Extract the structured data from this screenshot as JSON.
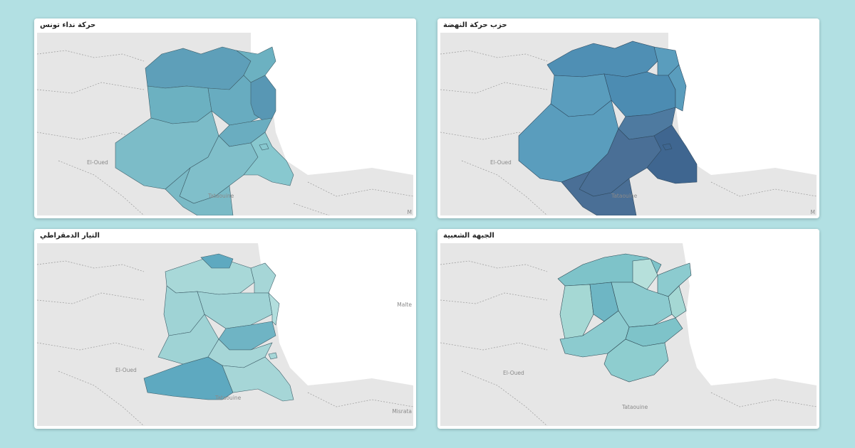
{
  "panels": [
    {
      "title": "حركة نداء تونس",
      "labels": {
        "west_city": "El-Oued",
        "south_city": "Tataouine",
        "right_edge": "M"
      },
      "colors": {
        "north": "#5e9fb9",
        "center": "#6cb1c1",
        "south": "#7cbcc8",
        "southeast": "#88c8cf"
      }
    },
    {
      "title": "حزب حركة النهضة",
      "labels": {
        "west_city": "El-Oued",
        "south_city": "Tataouine",
        "right_edge": "M"
      },
      "colors": {
        "north": "#4f8fb4",
        "center": "#5a9dbd",
        "south": "#4a6f96",
        "southeast": "#3f6690"
      }
    },
    {
      "title": "التيار الدمقراطي",
      "labels": {
        "west_city": "El-Oued",
        "south_city": "Tataouine",
        "right_edge": "Malte",
        "southeast_city": "Misrata"
      },
      "colors": {
        "north": "#a8d8d8",
        "center": "#9fd3d5",
        "south": "#5ea9c0",
        "southeast": "#a6d6d7"
      }
    },
    {
      "title": "الجبهة الشعبية",
      "labels": {
        "west_city": "El-Oued",
        "south_city": "Tataouine"
      },
      "colors": {
        "north": "#7ec3c9",
        "center": "#8ccbcf",
        "south": "#8ecdcf",
        "southeast": "#8ecdcf"
      }
    }
  ],
  "theme": {
    "background": "#b2e0e3",
    "land": "#e6e6e6",
    "sea": "#ffffff",
    "border": "#555555"
  }
}
